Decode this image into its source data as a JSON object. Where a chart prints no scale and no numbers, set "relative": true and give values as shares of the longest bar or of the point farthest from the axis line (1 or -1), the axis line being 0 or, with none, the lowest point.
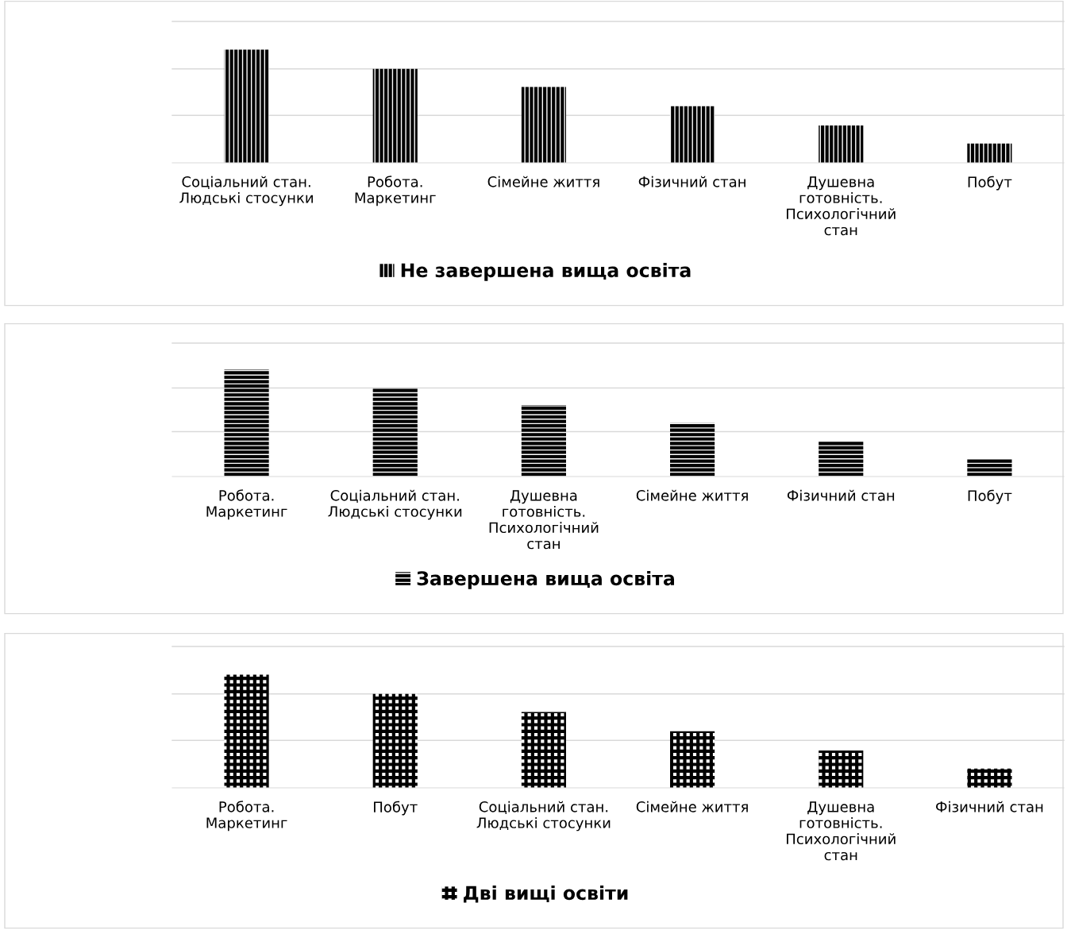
{
  "chart_data": [
    {
      "type": "bar",
      "relative": true,
      "legend": "bottom",
      "ref_lines": [
        {
          "axis": "y",
          "value": 0.42,
          "color": "#d9d9d9"
        },
        {
          "axis": "y",
          "value": 0.83,
          "color": "#d9d9d9"
        },
        {
          "axis": "y",
          "value": 1.25,
          "color": "#d9d9d9"
        }
      ],
      "categories": [
        "Соціальний стан.\nЛюдські стосунки",
        "Робота.\nМаркетинг",
        "Сімейне життя",
        "Фізичний стан",
        "Душевна\nготовність.\nПсихологічний\nстан",
        "Побут"
      ],
      "series": [
        {
          "name": "Не завершена вища освіта",
          "color": "#000000",
          "values": [
            1,
            0.83,
            0.67,
            0.5,
            0.33,
            0.17
          ]
        }
      ]
    },
    {
      "type": "bar",
      "relative": true,
      "legend": "bottom",
      "ref_lines": [
        {
          "axis": "y",
          "value": 0.42,
          "color": "#d9d9d9"
        },
        {
          "axis": "y",
          "value": 0.83,
          "color": "#d9d9d9"
        },
        {
          "axis": "y",
          "value": 1.25,
          "color": "#d9d9d9"
        }
      ],
      "categories": [
        "Робота.\nМаркетинг",
        "Соціальний стан.\nЛюдські стосунки",
        "Душевна\nготовність.\nПсихологічний\nстан",
        "Сімейне життя",
        "Фізичний стан",
        "Побут"
      ],
      "series": [
        {
          "name": "Завершена вища освіта",
          "color": "#000000",
          "values": [
            1,
            0.83,
            0.67,
            0.5,
            0.33,
            0.17
          ]
        }
      ]
    },
    {
      "type": "bar",
      "relative": true,
      "legend": "bottom",
      "ref_lines": [
        {
          "axis": "y",
          "value": 0.42,
          "color": "#d9d9d9"
        },
        {
          "axis": "y",
          "value": 0.83,
          "color": "#d9d9d9"
        },
        {
          "axis": "y",
          "value": 1.25,
          "color": "#d9d9d9"
        }
      ],
      "categories": [
        "Робота.\nМаркетинг",
        "Побут",
        "Соціальний стан.\nЛюдські стосунки",
        "Сімейне життя",
        "Душевна\nготовність.\nПсихологічний\nстан",
        "Фізичний стан"
      ],
      "series": [
        {
          "name": "Дві вищі освіти",
          "color": "#000000",
          "values": [
            1,
            0.83,
            0.67,
            0.5,
            0.33,
            0.17
          ]
        }
      ]
    }
  ]
}
